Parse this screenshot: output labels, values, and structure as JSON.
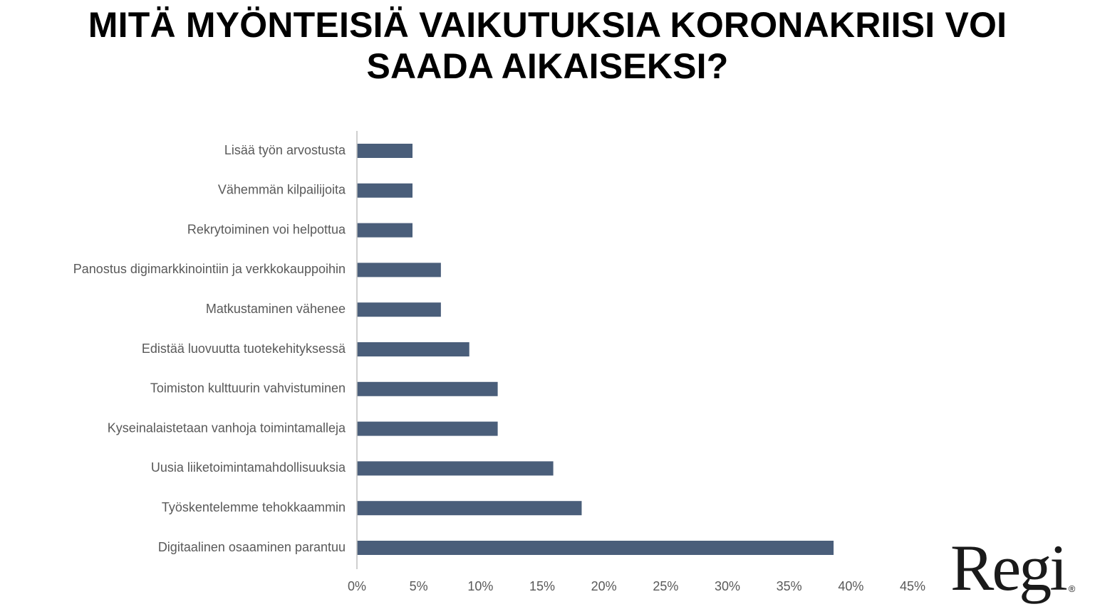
{
  "title": {
    "line1": "MITÄ MYÖNTEISIÄ VAIKUTUKSIA KORONAKRIISI VOI",
    "line2": "SAADA AIKAISEKSI?"
  },
  "logo": {
    "text": "Regi",
    "mark": "®"
  },
  "colors": {
    "bar": "#4a5e7a",
    "axis": "#bfbfbf",
    "label": "#595959"
  },
  "chart_data": {
    "type": "bar",
    "orientation": "horizontal",
    "title": "MITÄ MYÖNTEISIÄ VAIKUTUKSIA KORONAKRIISI VOI SAADA AIKAISEKSI?",
    "xlabel": "",
    "ylabel": "",
    "xlim": [
      0,
      45
    ],
    "grid": false,
    "legend": "none",
    "tick_labels": [
      "0%",
      "5%",
      "10%",
      "15%",
      "20%",
      "25%",
      "30%",
      "35%",
      "40%",
      "45%"
    ],
    "categories": [
      "Lisää työn arvostusta",
      "Vähemmän kilpailijoita",
      "Rekrytoiminen voi helpottua",
      "Panostus digimarkkinointiin ja verkkokauppoihin",
      "Matkustaminen vähenee",
      "Edistää luovuutta tuotekehityksessä",
      "Toimiston kulttuurin vahvistuminen",
      "Kyseinalaistetaan vanhoja toimintamalleja",
      "Uusia liiketoimintamahdollisuuksia",
      "Työskentelemme tehokkaammin",
      "Digitaalinen osaaminen parantuu"
    ],
    "values": [
      4.5,
      4.5,
      4.5,
      6.8,
      6.8,
      9.1,
      11.4,
      11.4,
      15.9,
      18.2,
      38.6
    ]
  }
}
